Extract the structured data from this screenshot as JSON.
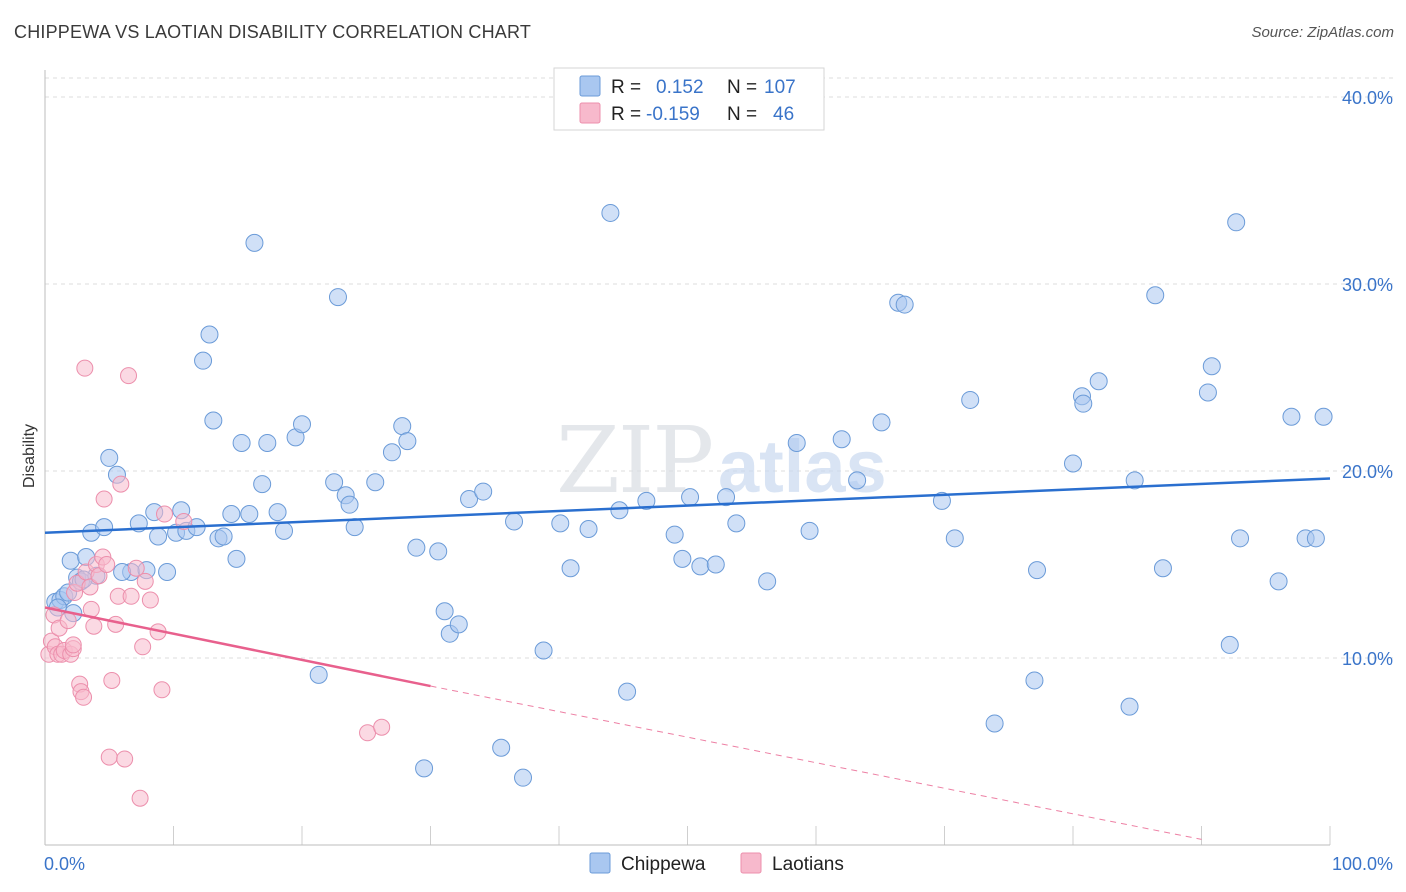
{
  "header": {
    "title": "CHIPPEWA VS LAOTIAN DISABILITY CORRELATION CHART",
    "source": "Source: ZipAtlas.com"
  },
  "watermark": {
    "zip": "ZIP",
    "atlas": "atlas"
  },
  "legend": {
    "rows": [
      {
        "r_label": "R =",
        "r_value": "0.152",
        "n_label": "N =",
        "n_value": "107"
      },
      {
        "r_label": "R =",
        "r_value": "-0.159",
        "n_label": "N =",
        "n_value": "46"
      }
    ]
  },
  "chart_data": {
    "type": "scatter",
    "title": "CHIPPEWA VS LAOTIAN DISABILITY CORRELATION CHART",
    "xlabel": "",
    "ylabel": "Disability",
    "xlim": [
      0,
      100
    ],
    "ylim": [
      0,
      40
    ],
    "x_tick_labels": [
      "0.0%",
      "100.0%"
    ],
    "y_ticks": [
      10,
      20,
      30,
      40
    ],
    "y_tick_labels": [
      "10.0%",
      "20.0%",
      "30.0%",
      "40.0%"
    ],
    "grid": true,
    "legend_position": "top-center",
    "colors": {
      "chippewa_fill": "#a9c7f0",
      "chippewa_stroke": "#6b9bd8",
      "chippewa_line": "#2a6fcf",
      "laotians_fill": "#f7b9cc",
      "laotians_stroke": "#ec8fac",
      "laotians_line": "#e8608d",
      "tick_label": "#3a74c9"
    },
    "series": [
      {
        "name": "Chippewa",
        "r": 0.152,
        "n": 107,
        "trend": {
          "x0": 0,
          "y0": 16.7,
          "x1": 100,
          "y1": 19.6
        },
        "points": [
          [
            0.8,
            13.0
          ],
          [
            1.2,
            13.1
          ],
          [
            1.5,
            13.3
          ],
          [
            1.8,
            13.5
          ],
          [
            2.0,
            15.2
          ],
          [
            2.2,
            12.4
          ],
          [
            2.5,
            14.3
          ],
          [
            2.8,
            14.1
          ],
          [
            3.2,
            15.4
          ],
          [
            3.6,
            16.7
          ],
          [
            4.0,
            14.4
          ],
          [
            4.6,
            17.0
          ],
          [
            5.0,
            20.7
          ],
          [
            5.6,
            19.8
          ],
          [
            6.7,
            14.6
          ],
          [
            7.3,
            17.2
          ],
          [
            7.9,
            14.7
          ],
          [
            8.5,
            17.8
          ],
          [
            8.8,
            16.5
          ],
          [
            9.5,
            14.6
          ],
          [
            10.2,
            16.7
          ],
          [
            10.6,
            17.9
          ],
          [
            11.0,
            16.8
          ],
          [
            11.8,
            17.0
          ],
          [
            12.3,
            25.9
          ],
          [
            12.8,
            27.3
          ],
          [
            13.1,
            22.7
          ],
          [
            13.5,
            16.4
          ],
          [
            13.9,
            16.5
          ],
          [
            14.5,
            17.7
          ],
          [
            14.9,
            15.3
          ],
          [
            15.3,
            21.5
          ],
          [
            15.9,
            17.7
          ],
          [
            16.3,
            32.2
          ],
          [
            16.9,
            19.3
          ],
          [
            17.3,
            21.5
          ],
          [
            18.1,
            17.8
          ],
          [
            18.6,
            16.8
          ],
          [
            19.5,
            21.8
          ],
          [
            20.0,
            22.5
          ],
          [
            21.3,
            9.1
          ],
          [
            22.5,
            19.4
          ],
          [
            22.8,
            29.3
          ],
          [
            23.4,
            18.7
          ],
          [
            23.7,
            18.2
          ],
          [
            24.1,
            17.0
          ],
          [
            25.7,
            19.4
          ],
          [
            27.0,
            21.0
          ],
          [
            27.8,
            22.4
          ],
          [
            28.2,
            21.6
          ],
          [
            28.9,
            15.9
          ],
          [
            29.5,
            4.1
          ],
          [
            30.6,
            15.7
          ],
          [
            31.1,
            12.5
          ],
          [
            31.5,
            11.3
          ],
          [
            32.2,
            11.8
          ],
          [
            33.0,
            18.5
          ],
          [
            34.1,
            18.9
          ],
          [
            35.5,
            5.2
          ],
          [
            36.5,
            17.3
          ],
          [
            37.2,
            3.6
          ],
          [
            38.8,
            10.4
          ],
          [
            40.1,
            17.2
          ],
          [
            40.9,
            14.8
          ],
          [
            42.3,
            16.9
          ],
          [
            44.0,
            33.8
          ],
          [
            44.7,
            17.9
          ],
          [
            45.3,
            8.2
          ],
          [
            46.8,
            18.4
          ],
          [
            49.0,
            16.6
          ],
          [
            49.6,
            15.3
          ],
          [
            50.2,
            18.6
          ],
          [
            51.0,
            14.9
          ],
          [
            52.2,
            15.0
          ],
          [
            53.0,
            18.6
          ],
          [
            53.8,
            17.2
          ],
          [
            56.2,
            14.1
          ],
          [
            58.5,
            21.5
          ],
          [
            59.5,
            16.8
          ],
          [
            62.0,
            21.7
          ],
          [
            63.2,
            19.5
          ],
          [
            65.1,
            22.6
          ],
          [
            66.4,
            29.0
          ],
          [
            66.9,
            28.9
          ],
          [
            69.8,
            18.4
          ],
          [
            70.8,
            16.4
          ],
          [
            72.0,
            23.8
          ],
          [
            73.9,
            6.5
          ],
          [
            77.0,
            8.8
          ],
          [
            77.2,
            14.7
          ],
          [
            80.0,
            20.4
          ],
          [
            80.7,
            24.0
          ],
          [
            80.8,
            23.6
          ],
          [
            82.0,
            24.8
          ],
          [
            84.4,
            7.4
          ],
          [
            84.8,
            19.5
          ],
          [
            86.4,
            29.4
          ],
          [
            87.0,
            14.8
          ],
          [
            90.5,
            24.2
          ],
          [
            90.8,
            25.6
          ],
          [
            92.2,
            10.7
          ],
          [
            92.7,
            33.3
          ],
          [
            93.0,
            16.4
          ],
          [
            96.0,
            14.1
          ],
          [
            97.0,
            22.9
          ],
          [
            98.1,
            16.4
          ],
          [
            98.9,
            16.4
          ],
          [
            99.5,
            22.9
          ],
          [
            1.0,
            12.7
          ],
          [
            3.0,
            14.2
          ],
          [
            6.0,
            14.6
          ]
        ]
      },
      {
        "name": "Laotians",
        "r": -0.159,
        "n": 46,
        "trend": {
          "x0": 0,
          "y0": 12.7,
          "x1": 30,
          "y1": 8.5,
          "dash_x1": 90,
          "dash_y1": 0.3
        },
        "points": [
          [
            0.3,
            10.2
          ],
          [
            0.5,
            10.9
          ],
          [
            0.7,
            12.3
          ],
          [
            0.8,
            10.6
          ],
          [
            1.0,
            10.2
          ],
          [
            1.1,
            11.6
          ],
          [
            1.3,
            10.2
          ],
          [
            1.5,
            10.4
          ],
          [
            1.8,
            12.0
          ],
          [
            2.0,
            10.2
          ],
          [
            2.2,
            10.5
          ],
          [
            2.3,
            13.5
          ],
          [
            2.5,
            14.0
          ],
          [
            2.7,
            8.6
          ],
          [
            2.8,
            8.2
          ],
          [
            3.0,
            7.9
          ],
          [
            3.2,
            14.6
          ],
          [
            3.5,
            13.8
          ],
          [
            3.6,
            12.6
          ],
          [
            3.8,
            11.7
          ],
          [
            4.0,
            15.0
          ],
          [
            4.2,
            14.4
          ],
          [
            4.5,
            15.4
          ],
          [
            4.6,
            18.5
          ],
          [
            4.8,
            15.0
          ],
          [
            5.0,
            4.7
          ],
          [
            5.2,
            8.8
          ],
          [
            5.5,
            11.8
          ],
          [
            5.7,
            13.3
          ],
          [
            5.9,
            19.3
          ],
          [
            6.2,
            4.6
          ],
          [
            6.5,
            25.1
          ],
          [
            6.7,
            13.3
          ],
          [
            7.1,
            14.8
          ],
          [
            7.4,
            2.5
          ],
          [
            7.6,
            10.6
          ],
          [
            7.8,
            14.1
          ],
          [
            8.2,
            13.1
          ],
          [
            8.8,
            11.4
          ],
          [
            9.1,
            8.3
          ],
          [
            9.3,
            17.7
          ],
          [
            10.8,
            17.3
          ],
          [
            2.2,
            10.7
          ],
          [
            3.1,
            25.5
          ],
          [
            25.1,
            6.0
          ],
          [
            26.2,
            6.3
          ]
        ]
      }
    ]
  }
}
